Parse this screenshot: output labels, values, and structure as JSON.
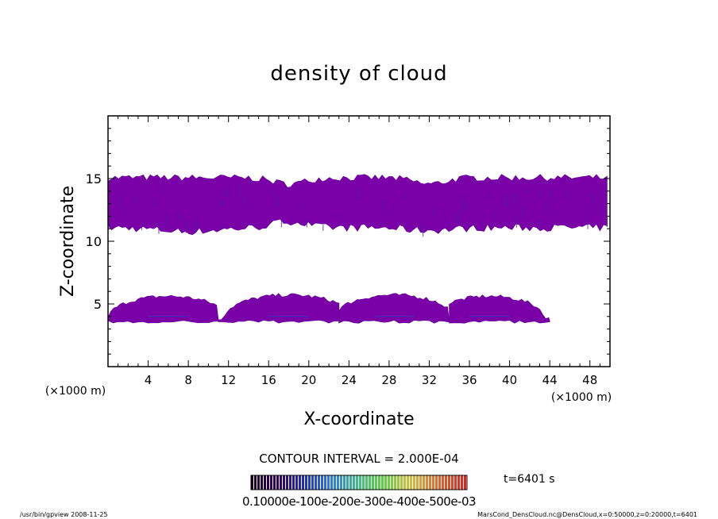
{
  "chart_data": {
    "type": "heatmap",
    "title": "density of cloud",
    "xlabel": "X-coordinate",
    "ylabel": "Z-coordinate",
    "x_unit": "(×1000 m)",
    "y_unit": "(×1000 m)",
    "xlim": [
      0,
      50
    ],
    "ylim": [
      0,
      20
    ],
    "x_ticks": [
      4,
      8,
      12,
      16,
      20,
      24,
      28,
      32,
      36,
      40,
      44,
      48
    ],
    "y_ticks": [
      5,
      10,
      15
    ],
    "cloud_layers": [
      {
        "name": "upper",
        "x_range": [
          0,
          50
        ],
        "z_range": [
          10.5,
          15.3
        ],
        "dip_centers": [
          18,
          32
        ],
        "color": "#7a00a8"
      },
      {
        "name": "lower",
        "z_base": 3.6,
        "humps": [
          {
            "x_range": [
              0,
              11
            ],
            "peak_x": 6,
            "top": 5.6
          },
          {
            "x_range": [
              11,
              23
            ],
            "peak_x": 18,
            "top": 5.7
          },
          {
            "x_range": [
              23,
              34
            ],
            "peak_x": 28.5,
            "top": 5.7
          },
          {
            "x_range": [
              34,
              44
            ],
            "peak_x": 38,
            "top": 5.6
          }
        ],
        "color": "#7a00a8"
      }
    ],
    "contour_interval": "CONTOUR INTERVAL = 2.000E-04",
    "time_label": "t=6401 s",
    "colorbar_labels": [
      "0.1000e-10",
      "0.1000e-03",
      "0.2000e-03",
      "0.3000e-03",
      "0.4000e-03",
      "0.5000e-03"
    ],
    "colorbar_label_text": "0.10000e-100e-200e-300e-400e-500e-03",
    "footer_left": "/usr/bin/gpview   2008-11-25",
    "footer_right": "MarsCond_DensCloud.nc@DensCloud,x=0:50000,z=0:20000,t=6401",
    "grid": false,
    "legend": "bottom colorbar"
  }
}
